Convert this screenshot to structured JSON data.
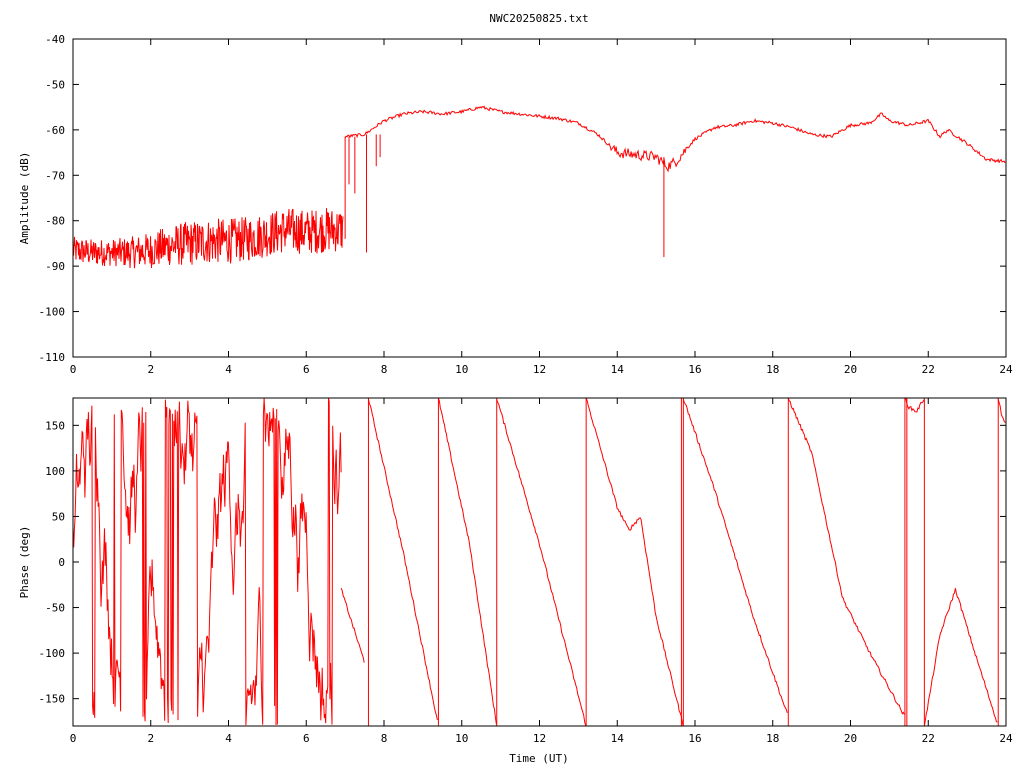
{
  "title": "NWC20250825.txt",
  "colors": {
    "trace": "#ff0000",
    "frame": "#000000",
    "background": "#ffffff"
  },
  "chart_data": [
    {
      "type": "line",
      "ylabel": "Amplitude (dB)",
      "xlabel": "",
      "xlim": [
        0,
        24
      ],
      "ylim": [
        -110,
        -40
      ],
      "xticks": [
        "0",
        "2",
        "4",
        "6",
        "8",
        "10",
        "12",
        "14",
        "16",
        "18",
        "20",
        "22",
        "24"
      ],
      "yticks": [
        "-40",
        "-50",
        "-60",
        "-70",
        "-80",
        "-90",
        "-100",
        "-110"
      ],
      "grid": false,
      "series": [
        {
          "noisy_segment": {
            "x": [
              0,
              0.5,
              1.0,
              1.5,
              2.0,
              2.5,
              3.0,
              3.5,
              4.0,
              4.5,
              5.0,
              5.5,
              6.0,
              6.5,
              6.95
            ],
            "y": [
              -86.5,
              -87,
              -87,
              -87,
              -86.5,
              -85.5,
              -85,
              -84.5,
              -84.5,
              -84,
              -83,
              -82,
              -82.5,
              -82,
              -82
            ],
            "spread": [
              3,
              3,
              3,
              3.5,
              4,
              4.5,
              5,
              5,
              5,
              5,
              5,
              5,
              5,
              5,
              5
            ]
          },
          "smooth_segment": {
            "x": [
              7.0,
              7.5,
              8.0,
              8.5,
              9.0,
              9.5,
              10.0,
              10.5,
              11.0,
              11.5,
              12.0,
              12.5,
              13.0,
              13.5,
              14.0,
              14.5,
              15.0,
              15.3,
              15.5,
              16.0,
              16.5,
              17.0,
              17.5,
              18.0,
              18.5,
              19.0,
              19.5,
              20.0,
              20.5,
              20.8,
              21.0,
              21.5,
              22.0,
              22.3,
              22.5,
              23.0,
              23.5,
              24.0
            ],
            "y": [
              -61.5,
              -61,
              -58,
              -56.5,
              -56,
              -56.5,
              -56,
              -55,
              -56,
              -56.5,
              -57,
              -57.5,
              -58.5,
              -61,
              -65,
              -65.5,
              -66,
              -68,
              -67,
              -62,
              -59.5,
              -59,
              -58,
              -58.5,
              -59.5,
              -61,
              -61.5,
              -59,
              -58.5,
              -56.5,
              -58,
              -59,
              -58,
              -61.5,
              -60,
              -63,
              -66.5,
              -67
            ]
          },
          "spikes": [
            {
              "x": 7.0,
              "y_from": -61.5,
              "y_to": -84
            },
            {
              "x": 7.1,
              "y_from": -61.5,
              "y_to": -72
            },
            {
              "x": 7.25,
              "y_from": -61.5,
              "y_to": -74
            },
            {
              "x": 7.55,
              "y_from": -61,
              "y_to": -87
            },
            {
              "x": 7.8,
              "y_from": -61,
              "y_to": -68
            },
            {
              "x": 7.9,
              "y_from": -61,
              "y_to": -66
            },
            {
              "x": 15.2,
              "y_from": -66,
              "y_to": -88
            }
          ]
        }
      ]
    },
    {
      "type": "line",
      "ylabel": "Phase (deg)",
      "xlabel": "Time (UT)",
      "xlim": [
        0,
        24
      ],
      "ylim": [
        -180,
        180
      ],
      "xticks": [
        "0",
        "2",
        "4",
        "6",
        "8",
        "10",
        "12",
        "14",
        "16",
        "18",
        "20",
        "22",
        "24"
      ],
      "yticks": [
        "150",
        "100",
        "50",
        "0",
        "-50",
        "-100",
        "-150"
      ],
      "grid": false,
      "series": [
        {
          "noisy_segment": {
            "x_start": 0,
            "x_end": 6.9
          },
          "ramps": [
            {
              "x": [
                6.9,
                7.2,
                7.5
              ],
              "y": [
                -30,
                -70,
                -110
              ]
            },
            {
              "x": [
                7.6,
                8.5,
                9.4
              ],
              "y": [
                180,
                10,
                -180
              ]
            },
            {
              "x": [
                9.4,
                10.2,
                10.9
              ],
              "y": [
                180,
                20,
                -180
              ]
            },
            {
              "x": [
                10.9,
                12.0,
                13.2
              ],
              "y": [
                180,
                20,
                -180
              ]
            },
            {
              "x": [
                13.2,
                14.0,
                14.3,
                14.6,
                15.0,
                15.7
              ],
              "y": [
                180,
                60,
                35,
                50,
                -60,
                -180
              ]
            },
            {
              "x": [
                15.7,
                16.5,
                17.5,
                18.4
              ],
              "y": [
                180,
                80,
                -60,
                -170
              ]
            },
            {
              "x": [
                18.4,
                19.0,
                19.8,
                20.5,
                21.4
              ],
              "y": [
                180,
                120,
                -40,
                -100,
                -170
              ]
            },
            {
              "x": [
                21.4,
                21.5,
                21.7,
                21.9
              ],
              "y": [
                180,
                170,
                165,
                180
              ]
            },
            {
              "x": [
                21.9,
                22.3,
                22.7,
                23.2,
                23.8
              ],
              "y": [
                -180,
                -80,
                -30,
                -100,
                -180
              ]
            },
            {
              "x": [
                23.8,
                23.9,
                24.0
              ],
              "y": [
                180,
                160,
                150
              ]
            }
          ],
          "wraps": [
            7.6,
            9.4,
            10.9,
            13.2,
            15.65,
            15.7,
            18.4,
            21.4,
            21.45,
            21.9,
            23.8
          ]
        }
      ]
    }
  ]
}
